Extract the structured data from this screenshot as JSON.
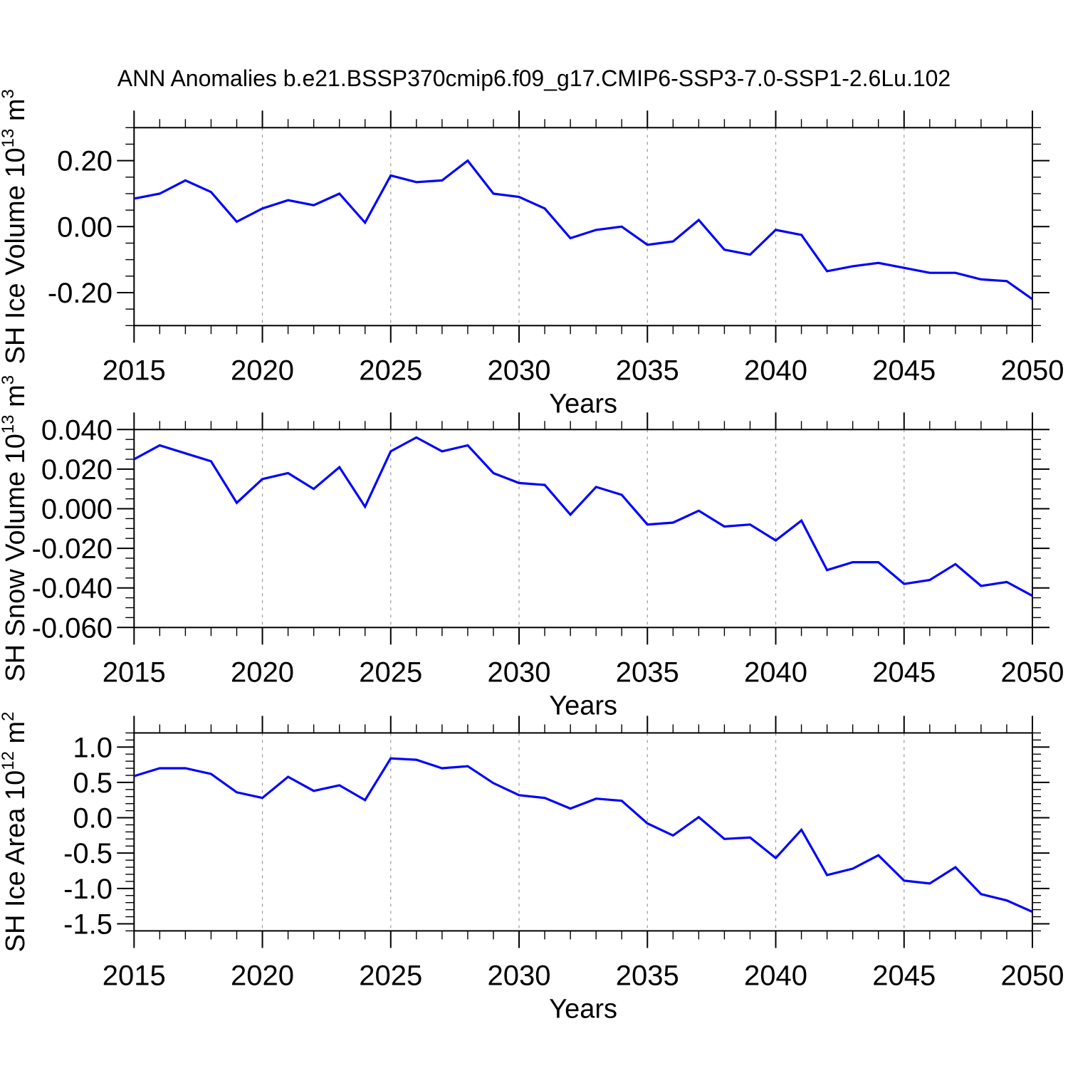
{
  "title": "ANN Anomalies b.e21.BSSP370cmip6.f09_g17.CMIP6-SSP3-7.0-SSP1-2.6Lu.102",
  "figure": {
    "background_color": "#ffffff",
    "line_color": "#0000ff",
    "grid_color": "#999999",
    "frame_color": "#000000"
  },
  "chart_data": [
    {
      "type": "line",
      "name": "sh-ice-volume",
      "ylabel": "SH Ice Volume 10^13 m^3",
      "xlabel": "Years",
      "ylim": [
        -0.3,
        0.3
      ],
      "ytick_values": [
        0.2,
        0.0,
        -0.2
      ],
      "ytick_labels": [
        "0.20",
        "0.00",
        "-0.20"
      ],
      "yminor_step": 0.05,
      "x_tick_labels": [
        "2015",
        "2020",
        "2025",
        "2030",
        "2035",
        "2040",
        "2045",
        "2050"
      ],
      "grid_years": [
        2020,
        2025,
        2030,
        2035,
        2040,
        2045
      ],
      "x": [
        2015,
        2016,
        2017,
        2018,
        2019,
        2020,
        2021,
        2022,
        2023,
        2024,
        2025,
        2026,
        2027,
        2028,
        2029,
        2030,
        2031,
        2032,
        2033,
        2034,
        2035,
        2036,
        2037,
        2038,
        2039,
        2040,
        2041,
        2042,
        2043,
        2044,
        2045,
        2046,
        2047,
        2048,
        2049,
        2050
      ],
      "values": [
        0.085,
        0.1,
        0.14,
        0.105,
        0.015,
        0.055,
        0.08,
        0.065,
        0.1,
        0.012,
        0.155,
        0.135,
        0.14,
        0.2,
        0.1,
        0.09,
        0.055,
        -0.035,
        -0.01,
        0.0,
        -0.055,
        -0.045,
        0.02,
        -0.07,
        -0.085,
        -0.01,
        -0.025,
        -0.135,
        -0.12,
        -0.11,
        -0.125,
        -0.14,
        -0.14,
        -0.16,
        -0.165,
        -0.22
      ]
    },
    {
      "type": "line",
      "name": "sh-snow-volume",
      "ylabel": "SH Snow Volume 10^13 m^3",
      "xlabel": "Years",
      "ylim": [
        -0.06,
        0.04
      ],
      "ytick_values": [
        0.04,
        0.02,
        0.0,
        -0.02,
        -0.04,
        -0.06
      ],
      "ytick_labels": [
        "0.040",
        "0.020",
        "0.000",
        "-0.020",
        "-0.040",
        "-0.060"
      ],
      "yminor_step": 0.005,
      "x_tick_labels": [
        "2015",
        "2020",
        "2025",
        "2030",
        "2035",
        "2040",
        "2045",
        "2050"
      ],
      "grid_years": [
        2020,
        2025,
        2030,
        2035,
        2040,
        2045
      ],
      "x": [
        2015,
        2016,
        2017,
        2018,
        2019,
        2020,
        2021,
        2022,
        2023,
        2024,
        2025,
        2026,
        2027,
        2028,
        2029,
        2030,
        2031,
        2032,
        2033,
        2034,
        2035,
        2036,
        2037,
        2038,
        2039,
        2040,
        2041,
        2042,
        2043,
        2044,
        2045,
        2046,
        2047,
        2048,
        2049,
        2050
      ],
      "values": [
        0.025,
        0.032,
        0.028,
        0.024,
        0.003,
        0.015,
        0.018,
        0.01,
        0.021,
        0.001,
        0.029,
        0.036,
        0.029,
        0.032,
        0.018,
        0.013,
        0.012,
        -0.003,
        0.011,
        0.007,
        -0.008,
        -0.007,
        -0.001,
        -0.009,
        -0.008,
        -0.016,
        -0.006,
        -0.031,
        -0.027,
        -0.027,
        -0.038,
        -0.036,
        -0.028,
        -0.039,
        -0.037,
        -0.044
      ]
    },
    {
      "type": "line",
      "name": "sh-ice-area",
      "ylabel": "SH Ice Area 10^12 m^2",
      "xlabel": "Years",
      "ylim": [
        -1.6,
        1.2
      ],
      "ytick_values": [
        1.0,
        0.5,
        0.0,
        -0.5,
        -1.0,
        -1.5
      ],
      "ytick_labels": [
        "1.0",
        "0.5",
        "0.0",
        "-0.5",
        "-1.0",
        "-1.5"
      ],
      "yminor_step": 0.1,
      "x_tick_labels": [
        "2015",
        "2020",
        "2025",
        "2030",
        "2035",
        "2040",
        "2045",
        "2050"
      ],
      "grid_years": [
        2020,
        2025,
        2030,
        2035,
        2040,
        2045
      ],
      "x": [
        2015,
        2016,
        2017,
        2018,
        2019,
        2020,
        2021,
        2022,
        2023,
        2024,
        2025,
        2026,
        2027,
        2028,
        2029,
        2030,
        2031,
        2032,
        2033,
        2034,
        2035,
        2036,
        2037,
        2038,
        2039,
        2040,
        2041,
        2042,
        2043,
        2044,
        2045,
        2046,
        2047,
        2048,
        2049,
        2050
      ],
      "values": [
        0.59,
        0.7,
        0.7,
        0.62,
        0.36,
        0.28,
        0.58,
        0.38,
        0.46,
        0.25,
        0.84,
        0.82,
        0.7,
        0.73,
        0.49,
        0.32,
        0.28,
        0.13,
        0.27,
        0.24,
        -0.08,
        -0.25,
        0.01,
        -0.3,
        -0.28,
        -0.57,
        -0.17,
        -0.81,
        -0.72,
        -0.53,
        -0.89,
        -0.93,
        -0.7,
        -1.08,
        -1.17,
        -1.33
      ]
    }
  ]
}
